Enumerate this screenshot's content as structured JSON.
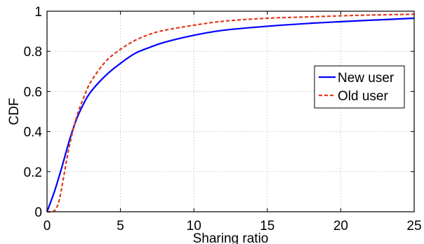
{
  "chart_data": {
    "type": "line",
    "title": "",
    "xlabel": "Sharing ratio",
    "ylabel": "CDF",
    "xlim": [
      0,
      25
    ],
    "ylim": [
      0,
      1
    ],
    "xticks": [
      "0",
      "5",
      "10",
      "15",
      "20",
      "25"
    ],
    "yticks": [
      "0",
      "0.2",
      "0.4",
      "0.6",
      "0.8",
      "1"
    ],
    "grid": true,
    "legend_position": "right",
    "series": [
      {
        "name": "New user",
        "color": "#0000ff",
        "style": "solid",
        "x": [
          0,
          0.5,
          1,
          1.5,
          2,
          2.5,
          3,
          4,
          5,
          6,
          7,
          8,
          10,
          12,
          15,
          18,
          20,
          22,
          25
        ],
        "y": [
          0,
          0.1,
          0.22,
          0.35,
          0.46,
          0.54,
          0.6,
          0.68,
          0.74,
          0.79,
          0.82,
          0.845,
          0.88,
          0.905,
          0.925,
          0.94,
          0.948,
          0.955,
          0.965
        ]
      },
      {
        "name": "Old user",
        "color": "#e23b1a",
        "style": "dashed",
        "x": [
          0,
          0.5,
          0.8,
          1,
          1.5,
          2,
          2.5,
          3,
          4,
          5,
          6,
          7,
          8,
          10,
          12,
          15,
          18,
          20,
          22,
          25
        ],
        "y": [
          0,
          0.005,
          0.05,
          0.12,
          0.32,
          0.47,
          0.57,
          0.65,
          0.75,
          0.81,
          0.855,
          0.885,
          0.905,
          0.93,
          0.95,
          0.965,
          0.972,
          0.977,
          0.981,
          0.985
        ]
      }
    ]
  }
}
